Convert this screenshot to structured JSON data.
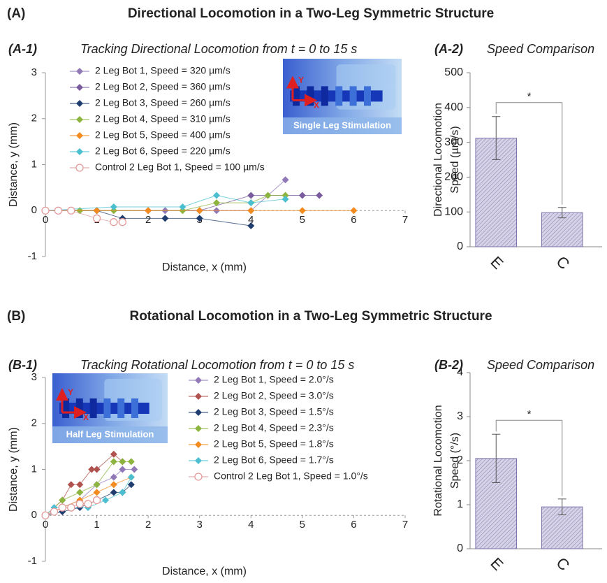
{
  "sections": [
    {
      "label": "(A)",
      "title": "Directional Locomotion in a Two-Leg Symmetric Structure"
    },
    {
      "label": "(B)",
      "title": "Rotational Locomotion in a Two-Leg Symmetric Structure"
    }
  ],
  "chart_data": [
    {
      "type": "line",
      "panel": "(A-1)",
      "title": "Tracking Directional Locomotion from t = 0 to 15 s",
      "xlabel": "Distance, x (mm)",
      "ylabel": "Distance, y (mm)",
      "xlim": [
        0,
        7
      ],
      "ylim": [
        -1,
        3
      ],
      "xticks": [
        0,
        1,
        2,
        3,
        4,
        5,
        6,
        7
      ],
      "yticks": [
        -1,
        0,
        1,
        2,
        3
      ],
      "inset": {
        "x_label": "X",
        "y_label": "Y",
        "label": "Single Leg Stimulation"
      },
      "series": [
        {
          "name": "2 Leg Bot 1, Speed = 320 µm/s",
          "color": "#9179b8",
          "marker": "diamond",
          "x": [
            0,
            0.5,
            1,
            2.33,
            3.33,
            4,
            4.67
          ],
          "values": [
            0,
            0,
            0,
            0,
            0,
            0,
            0.67
          ]
        },
        {
          "name": "2 Leg Bot 2, Speed = 360 µm/s",
          "color": "#7a5c9e",
          "marker": "diamond",
          "x": [
            0,
            1,
            2,
            3,
            4,
            5,
            5.33
          ],
          "values": [
            0,
            0,
            0,
            0,
            0.33,
            0.33,
            0.33
          ]
        },
        {
          "name": "2 Leg Bot 3, Speed = 260 µm/s",
          "color": "#1f3d6e",
          "marker": "diamond",
          "x": [
            0,
            0.5,
            1,
            1.5,
            2.33,
            3,
            4
          ],
          "values": [
            0,
            0,
            0,
            -0.17,
            -0.17,
            -0.17,
            -0.33
          ]
        },
        {
          "name": "2 Leg Bot 4, Speed = 310 µm/s",
          "color": "#8db43e",
          "marker": "diamond",
          "x": [
            0,
            0.67,
            1.33,
            2.67,
            3.33,
            4,
            4.33,
            4.67
          ],
          "values": [
            0,
            0,
            0,
            0,
            0.17,
            0.17,
            0.33,
            0.33
          ]
        },
        {
          "name": "2 Leg Bot 5, Speed = 400 µm/s",
          "color": "#f38b1f",
          "marker": "diamond",
          "x": [
            0,
            1,
            2,
            3,
            4,
            5,
            6
          ],
          "values": [
            0,
            0,
            0,
            0,
            0,
            0,
            0
          ]
        },
        {
          "name": "2 Leg Bot 6, Speed = 220 µm/s",
          "color": "#4bbfd0",
          "marker": "diamond",
          "x": [
            0,
            1.33,
            2.67,
            3.33,
            4,
            4.67
          ],
          "values": [
            0,
            0.08,
            0.08,
            0.33,
            0.17,
            0.25
          ]
        },
        {
          "name": "Control 2 Leg Bot 1, Speed = 100 µm/s",
          "color": "#e39a9a",
          "marker": "circle-open",
          "x": [
            0,
            0.25,
            0.5,
            1,
            1.33,
            1.5
          ],
          "values": [
            0,
            0,
            0,
            -0.17,
            -0.25,
            -0.25
          ]
        }
      ]
    },
    {
      "type": "bar",
      "panel": "(A-2)",
      "title": "Speed Comparison",
      "ylabel": [
        "Directional Locomotion",
        "Speed (µm/s)"
      ],
      "categories": [
        "E",
        "C"
      ],
      "values": [
        312,
        98
      ],
      "errors": [
        62,
        15
      ],
      "significance": "*",
      "color": "#c9c5de",
      "ylim": [
        0,
        500
      ],
      "yticks": [
        0,
        100,
        200,
        300,
        400,
        500
      ]
    },
    {
      "type": "line",
      "panel": "(B-1)",
      "title": "Tracking Rotational Locomotion from t = 0 to 15 s",
      "xlabel": "Distance, x (mm)",
      "ylabel": "Distance, y (mm)",
      "xlim": [
        0,
        7
      ],
      "ylim": [
        -1,
        3
      ],
      "xticks": [
        0,
        1,
        2,
        3,
        4,
        5,
        6,
        7
      ],
      "yticks": [
        -1,
        0,
        1,
        2,
        3
      ],
      "inset": {
        "x_label": "X",
        "y_label": "Y",
        "label": "Half Leg Stimulation"
      },
      "series": [
        {
          "name": "2 Leg Bot 1, Speed = 2.0°/s",
          "color": "#9179b8",
          "marker": "diamond",
          "x": [
            0,
            0.33,
            0.67,
            1,
            1.33,
            1.5,
            1.73
          ],
          "values": [
            0,
            0.17,
            0.33,
            0.67,
            0.83,
            1,
            1
          ]
        },
        {
          "name": "2 Leg Bot 2, Speed = 3.0°/s",
          "color": "#b0524e",
          "marker": "diamond",
          "x": [
            0,
            0.33,
            0.5,
            0.67,
            0.9,
            1,
            1.33,
            1.5
          ],
          "values": [
            0,
            0.33,
            0.67,
            0.67,
            1,
            1,
            1.33,
            1.17
          ]
        },
        {
          "name": "2 Leg Bot 3, Speed = 1.5°/s",
          "color": "#1f3d6e",
          "marker": "diamond",
          "x": [
            0,
            0.33,
            0.67,
            1,
            1.33,
            1.5,
            1.67
          ],
          "values": [
            0,
            0.08,
            0.17,
            0.33,
            0.5,
            0.5,
            0.67
          ]
        },
        {
          "name": "2 Leg Bot 4, Speed = 2.3°/s",
          "color": "#8db43e",
          "marker": "diamond",
          "x": [
            0,
            0.33,
            0.67,
            1,
            1.33,
            1.5,
            1.67
          ],
          "values": [
            0,
            0.33,
            0.5,
            0.67,
            1.17,
            1.17,
            1.17
          ]
        },
        {
          "name": "2 Leg Bot 5, Speed = 1.8°/s",
          "color": "#f38b1f",
          "marker": "diamond",
          "x": [
            0,
            0.33,
            0.67,
            1,
            1.33,
            1.67
          ],
          "values": [
            0,
            0.17,
            0.33,
            0.5,
            0.67,
            0.83
          ]
        },
        {
          "name": "2 Leg Bot 6, Speed = 1.7°/s",
          "color": "#4bbfd0",
          "marker": "diamond",
          "x": [
            0,
            0.17,
            0.5,
            0.83,
            1.17,
            1.5,
            1.67
          ],
          "values": [
            0,
            0.17,
            0.17,
            0.17,
            0.33,
            0.5,
            0.83
          ]
        },
        {
          "name": "Control 2 Leg Bot 1, Speed = 1.0°/s",
          "color": "#e39a9a",
          "marker": "circle-open",
          "x": [
            0,
            0.17,
            0.33,
            0.5,
            0.67,
            0.83,
            1
          ],
          "values": [
            0,
            0.08,
            0.17,
            0.17,
            0.25,
            0.25,
            0.33
          ]
        }
      ]
    },
    {
      "type": "bar",
      "panel": "(B-2)",
      "title": "Speed Comparison",
      "ylabel": [
        "Rotational Locomotion",
        "Speed (°/s)"
      ],
      "categories": [
        "E",
        "C"
      ],
      "values": [
        2.05,
        0.95
      ],
      "errors": [
        0.55,
        0.18
      ],
      "significance": "*",
      "color": "#c9c5de",
      "ylim": [
        0,
        4
      ],
      "yticks": [
        0,
        1,
        2,
        3,
        4
      ]
    }
  ]
}
